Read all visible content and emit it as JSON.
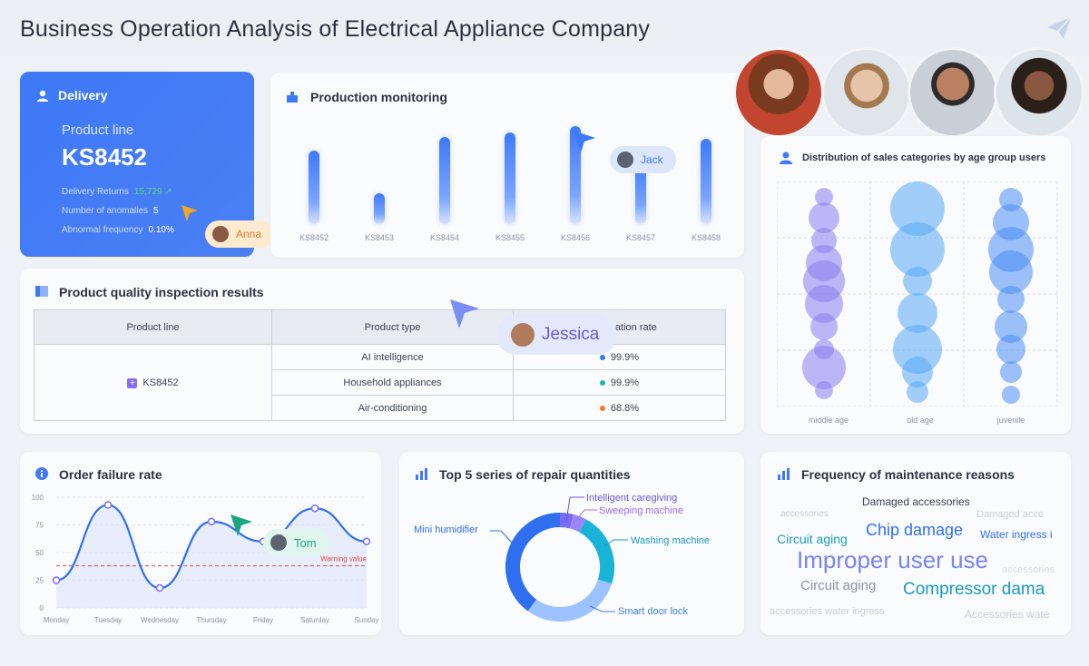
{
  "header": {
    "title": "Business Operation Analysis of Electrical Appliance Company"
  },
  "delivery": {
    "title": "Delivery",
    "product_line_label": "Product line",
    "product_code": "KS8452",
    "returns_label": "Delivery Returns",
    "returns_value": "15,729",
    "anomalies_label": "Number of anomalies",
    "anomalies_value": "5",
    "abnormal_label": "Abnormal frequency",
    "abnormal_value": "0.10%"
  },
  "production": {
    "title": "Production monitoring",
    "labels": [
      "KS8452",
      "KS8453",
      "KS8454",
      "KS8455",
      "KS8456",
      "KS8457",
      "KS8458"
    ],
    "values": [
      0.72,
      0.3,
      0.86,
      0.9,
      0.96,
      0.62,
      0.84
    ]
  },
  "quality": {
    "title": "Product quality inspection results",
    "headers": [
      "Product line",
      "Product type",
      "Qualification rate"
    ],
    "product_line": "KS8452",
    "rows": [
      {
        "type": "AI intelligence",
        "rate": "99.9%",
        "color": "#2f7ef5"
      },
      {
        "type": "Household appliances",
        "rate": "99.9%",
        "color": "#1fb5b5"
      },
      {
        "type": "Air-conditioning",
        "rate": "68.8%",
        "color": "#f07a2e"
      }
    ]
  },
  "distribution": {
    "title": "Distribution of sales categories by age group users",
    "groups": [
      "middle age",
      "old age",
      "juvenile"
    ]
  },
  "order": {
    "title": "Order failure rate",
    "days": [
      "Monday",
      "Tuesday",
      "Wednesday",
      "Thursday",
      "Friday",
      "Saturday",
      "Sunday"
    ],
    "y_ticks": [
      "100",
      "75",
      "50",
      "25",
      "0"
    ],
    "values": [
      25,
      93,
      18,
      78,
      60,
      90,
      60
    ],
    "warning_label": "Warning value",
    "warning_value": 38
  },
  "repair": {
    "title": "Top 5 series of repair quantities",
    "labels": {
      "intelligent": "Intelligent caregiving",
      "sweeping": "Sweeping machine",
      "washing": "Washing machine",
      "humidifier": "Mini humidifier",
      "doorlock": "Smart door lock"
    },
    "values": [
      {
        "name": "Intelligent caregiving",
        "value": 4,
        "color": "#7b6cf0"
      },
      {
        "name": "Sweeping machine",
        "value": 4,
        "color": "#9a86f6"
      },
      {
        "name": "Washing machine",
        "value": 22,
        "color": "#1ab3d8"
      },
      {
        "name": "Smart door lock",
        "value": 30,
        "color": "#9cc3ff"
      },
      {
        "name": "Mini humidifier",
        "value": 40,
        "color": "#2f6ff0"
      }
    ]
  },
  "maintenance": {
    "title": "Frequency of maintenance reasons",
    "words": {
      "w1": "accessories",
      "w2": "Damaged accessories",
      "w3": "Damaged acce",
      "w4": "Circuit aging",
      "w5": "Chip damage",
      "w6": "Water ingress i",
      "w7": "Improper user use",
      "w8": "accessories",
      "w9": "Circuit aging",
      "w10": "Compressor dama",
      "w11": "accessories water ingress",
      "w12": "Accessories wate"
    }
  },
  "collab": {
    "anna": "Anna",
    "jack": "Jack",
    "jessica": "Jessica",
    "tom": "Tom"
  },
  "colors": {
    "accent": "#3e79f7",
    "warning": "#e8493a"
  }
}
